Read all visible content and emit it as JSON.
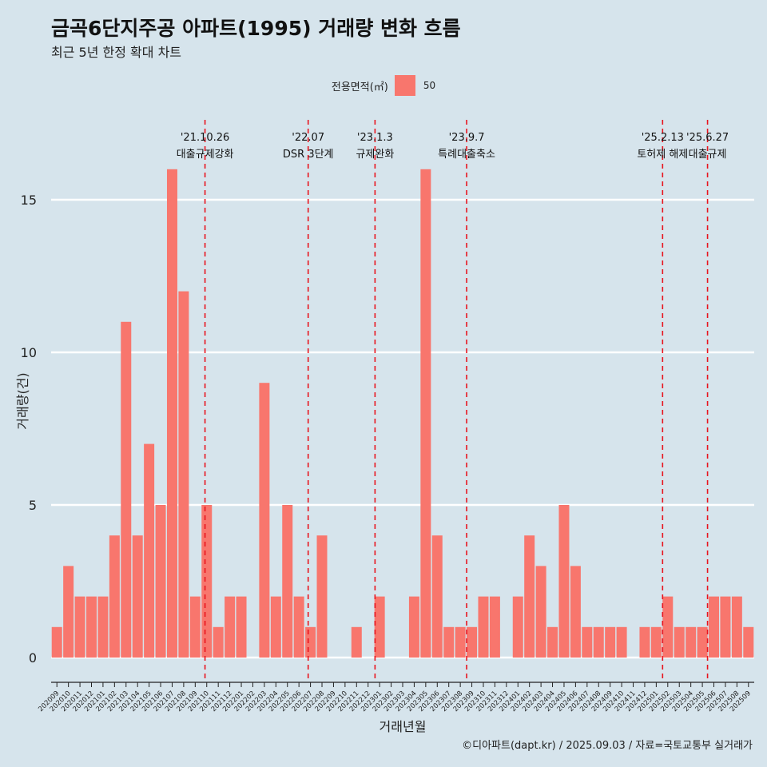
{
  "title": "금곡6단지주공 아파트(1995) 거래량 변화 흐름",
  "subtitle": "최근 5년 한정 확대 차트",
  "legend": {
    "title": "전용면적(㎡)",
    "items": [
      {
        "label": "50",
        "color": "#f8766d"
      }
    ]
  },
  "caption": "©디아파트(dapt.kr) / 2025.09.03 / 자료=국토교통부 실거래가",
  "colors": {
    "background": "#d6e4ec",
    "bar": "#f8766d",
    "event_line": "#e8141e",
    "grid": "#ffffff"
  },
  "chart_data": {
    "type": "bar",
    "xlabel": "거래년월",
    "ylabel": "거래량(건)",
    "ylim": [
      0,
      17.5
    ],
    "yticks": [
      0,
      5,
      10,
      15
    ],
    "grid": true,
    "legend_placement": "top-center",
    "categories": [
      "202009",
      "202010",
      "202011",
      "202012",
      "202101",
      "202102",
      "202103",
      "202104",
      "202105",
      "202106",
      "202107",
      "202108",
      "202109",
      "202110",
      "202111",
      "202112",
      "202201",
      "202202",
      "202203",
      "202204",
      "202205",
      "202206",
      "202207",
      "202208",
      "202209",
      "202210",
      "202211",
      "202212",
      "202301",
      "202302",
      "202303",
      "202304",
      "202305",
      "202306",
      "202307",
      "202308",
      "202309",
      "202310",
      "202311",
      "202312",
      "202401",
      "202402",
      "202403",
      "202404",
      "202405",
      "202406",
      "202407",
      "202408",
      "202409",
      "202410",
      "202411",
      "202412",
      "202501",
      "202502",
      "202503",
      "202504",
      "202505",
      "202506",
      "202507",
      "202508",
      "202509"
    ],
    "series": [
      {
        "name": "50",
        "values": [
          1,
          3,
          2,
          2,
          2,
          4,
          11,
          4,
          7,
          5,
          16,
          12,
          2,
          5,
          1,
          2,
          2,
          0,
          9,
          2,
          5,
          2,
          1,
          4,
          0,
          0,
          1,
          0,
          2,
          0,
          0,
          2,
          16,
          4,
          1,
          1,
          1,
          2,
          2,
          0,
          2,
          4,
          3,
          1,
          5,
          3,
          1,
          1,
          1,
          1,
          0,
          1,
          1,
          2,
          1,
          1,
          1,
          2,
          2,
          2,
          1
        ]
      }
    ],
    "events": [
      {
        "date": "'21.10.26",
        "label": "대출규제강화",
        "index": 13.35
      },
      {
        "date": "'22.07",
        "label": "DSR 3단계",
        "index": 22.3
      },
      {
        "date": "'23.1.3",
        "label": "규제완화",
        "index": 28.1
      },
      {
        "date": "'23.9.7",
        "label": "특례대출축소",
        "index": 36.05
      },
      {
        "date": "'25.2.13",
        "label": "토허제 해제",
        "index": 53.05
      },
      {
        "date": "'25.6.27",
        "label": "대출규제",
        "index": 56.95
      }
    ]
  }
}
